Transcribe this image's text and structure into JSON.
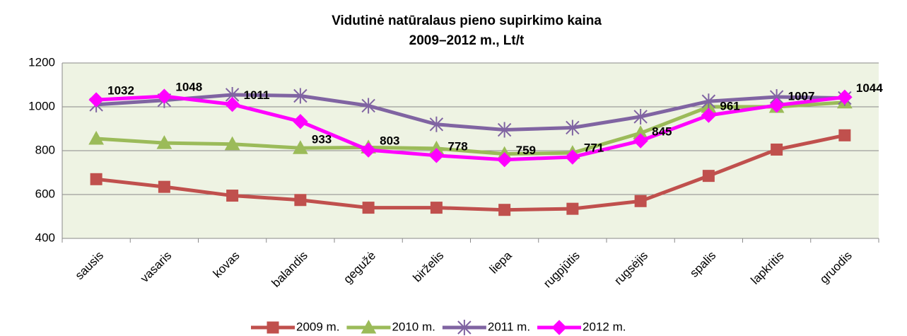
{
  "chart_data": {
    "type": "line",
    "title": "Vidutinė natūralaus pieno supirkimo kaina",
    "subtitle": "2009–2012 m., Lt/t",
    "categories": [
      "sausis",
      "vasaris",
      "kovas",
      "balandis",
      "gegužė",
      "birželis",
      "liepa",
      "rugpjūtis",
      "rugsėjis",
      "spalis",
      "lapkritis",
      "gruodis"
    ],
    "series": [
      {
        "name": "2009 m.",
        "color": "#c0504d",
        "marker": "square",
        "values": [
          670,
          635,
          595,
          575,
          540,
          540,
          530,
          535,
          570,
          685,
          805,
          870
        ]
      },
      {
        "name": "2010 m.",
        "color": "#9bbb59",
        "marker": "triangle",
        "values": [
          855,
          835,
          830,
          812,
          815,
          810,
          785,
          790,
          880,
          1000,
          1000,
          1020
        ]
      },
      {
        "name": "2011 m.",
        "color": "#8064a2",
        "marker": "star",
        "values": [
          1010,
          1030,
          1055,
          1050,
          1005,
          920,
          895,
          905,
          955,
          1025,
          1045,
          1040
        ]
      },
      {
        "name": "2012 m.",
        "color": "#ff00ff",
        "marker": "diamond",
        "values": [
          1032,
          1048,
          1011,
          933,
          803,
          778,
          759,
          771,
          845,
          961,
          1007,
          1044
        ],
        "data_labels": true
      }
    ],
    "ylim": [
      400,
      1200
    ],
    "yticks": [
      400,
      600,
      800,
      1000,
      1200
    ],
    "grid": true,
    "legend": "bottom"
  }
}
